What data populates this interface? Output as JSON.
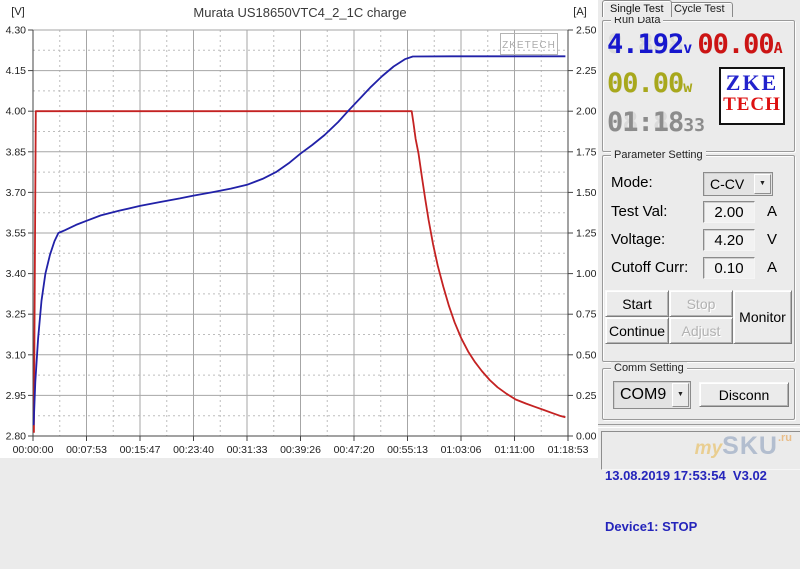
{
  "chart_data": {
    "type": "line",
    "title": "Murata US18650VTC4_2_1C charge",
    "watermark": "ZKETECH",
    "left_axis": {
      "label": "[V]",
      "min": 2.8,
      "max": 4.3,
      "step": 0.15
    },
    "right_axis": {
      "label": "[A]",
      "min": 0.0,
      "max": 2.5,
      "step": 0.25
    },
    "x_range_seconds": [
      0,
      4733
    ],
    "x_tick_labels": [
      "00:00:00",
      "00:07:53",
      "00:15:47",
      "00:23:40",
      "00:31:33",
      "00:39:26",
      "00:47:20",
      "00:55:13",
      "01:03:06",
      "01:11:00",
      "01:18:53"
    ],
    "grid": "major-solid-minor-dashed",
    "series": [
      {
        "name": "current",
        "axis": "right",
        "color": "#c42222",
        "points": [
          [
            8,
            0.02
          ],
          [
            18,
            1.2
          ],
          [
            25,
            2.0
          ],
          [
            3350,
            2.0
          ],
          [
            3365,
            1.93
          ],
          [
            3385,
            1.83
          ],
          [
            3410,
            1.74
          ],
          [
            3440,
            1.6
          ],
          [
            3470,
            1.46
          ],
          [
            3500,
            1.33
          ],
          [
            3540,
            1.18
          ],
          [
            3580,
            1.05
          ],
          [
            3630,
            0.92
          ],
          [
            3680,
            0.8
          ],
          [
            3730,
            0.7
          ],
          [
            3790,
            0.6
          ],
          [
            3850,
            0.52
          ],
          [
            3910,
            0.455
          ],
          [
            3970,
            0.4
          ],
          [
            4040,
            0.345
          ],
          [
            4110,
            0.3
          ],
          [
            4190,
            0.26
          ],
          [
            4270,
            0.225
          ],
          [
            4360,
            0.2
          ],
          [
            4440,
            0.18
          ],
          [
            4520,
            0.16
          ],
          [
            4600,
            0.14
          ],
          [
            4660,
            0.125
          ],
          [
            4710,
            0.115
          ]
        ]
      },
      {
        "name": "voltage",
        "axis": "left",
        "color": "#2121a8",
        "points": [
          [
            5,
            2.84
          ],
          [
            20,
            3.0
          ],
          [
            45,
            3.16
          ],
          [
            75,
            3.3
          ],
          [
            110,
            3.4
          ],
          [
            150,
            3.47
          ],
          [
            190,
            3.52
          ],
          [
            225,
            3.55
          ],
          [
            280,
            3.56
          ],
          [
            380,
            3.58
          ],
          [
            473,
            3.595
          ],
          [
            600,
            3.615
          ],
          [
            760,
            3.632
          ],
          [
            947,
            3.65
          ],
          [
            1120,
            3.664
          ],
          [
            1300,
            3.678
          ],
          [
            1420,
            3.688
          ],
          [
            1580,
            3.7
          ],
          [
            1750,
            3.714
          ],
          [
            1893,
            3.728
          ],
          [
            2030,
            3.75
          ],
          [
            2150,
            3.775
          ],
          [
            2270,
            3.81
          ],
          [
            2366,
            3.843
          ],
          [
            2470,
            3.875
          ],
          [
            2580,
            3.912
          ],
          [
            2700,
            3.96
          ],
          [
            2790,
            4.002
          ],
          [
            2890,
            4.046
          ],
          [
            2990,
            4.09
          ],
          [
            3090,
            4.13
          ],
          [
            3190,
            4.165
          ],
          [
            3290,
            4.192
          ],
          [
            3360,
            4.202
          ],
          [
            3700,
            4.203
          ],
          [
            4200,
            4.203
          ],
          [
            4710,
            4.203
          ]
        ]
      }
    ]
  },
  "panel": {
    "tabs": [
      {
        "label": "Single Test"
      },
      {
        "label": "Cycle Test"
      }
    ],
    "run_data": {
      "group_label": "Run Data",
      "voltage": {
        "value": "4.192",
        "ghost": "8.888",
        "unit": "v",
        "color": "#1717cd"
      },
      "current": {
        "value": "00.00",
        "ghost": "88.88",
        "unit": "A",
        "color": "#cc1414"
      },
      "power": {
        "value": "00.00",
        "ghost": "88.88",
        "unit": "w",
        "color": "#a8a81c"
      },
      "time": {
        "value": "01:18",
        "ghost": "88:88",
        "seconds": "33",
        "color": "#8c8c8c"
      },
      "logo": {
        "top": "ZKE",
        "bottom": "TECH"
      }
    },
    "parameter_setting": {
      "group_label": "Parameter Setting",
      "rows": [
        {
          "label": "Mode:",
          "value": "C-CV"
        },
        {
          "label": "Test Val:",
          "value": "2.00",
          "unit": "A"
        },
        {
          "label": "Voltage:",
          "value": "4.20",
          "unit": "V"
        },
        {
          "label": "Cutoff Curr:",
          "value": "0.10",
          "unit": "A"
        }
      ],
      "buttons": {
        "start": "Start",
        "stop": "Stop",
        "continue": "Continue",
        "adjust": "Adjust",
        "monitor": "Monitor"
      }
    },
    "comm_setting": {
      "group_label": "Comm Setting",
      "port": "COM9",
      "disconnect": "Disconn"
    },
    "status": {
      "line1": "13.08.2019 17:53:54  V3.02",
      "line2": "Device1: STOP"
    },
    "site_watermark": {
      "part1": "my",
      "part2": "SKU",
      "part3": ".ru"
    }
  }
}
